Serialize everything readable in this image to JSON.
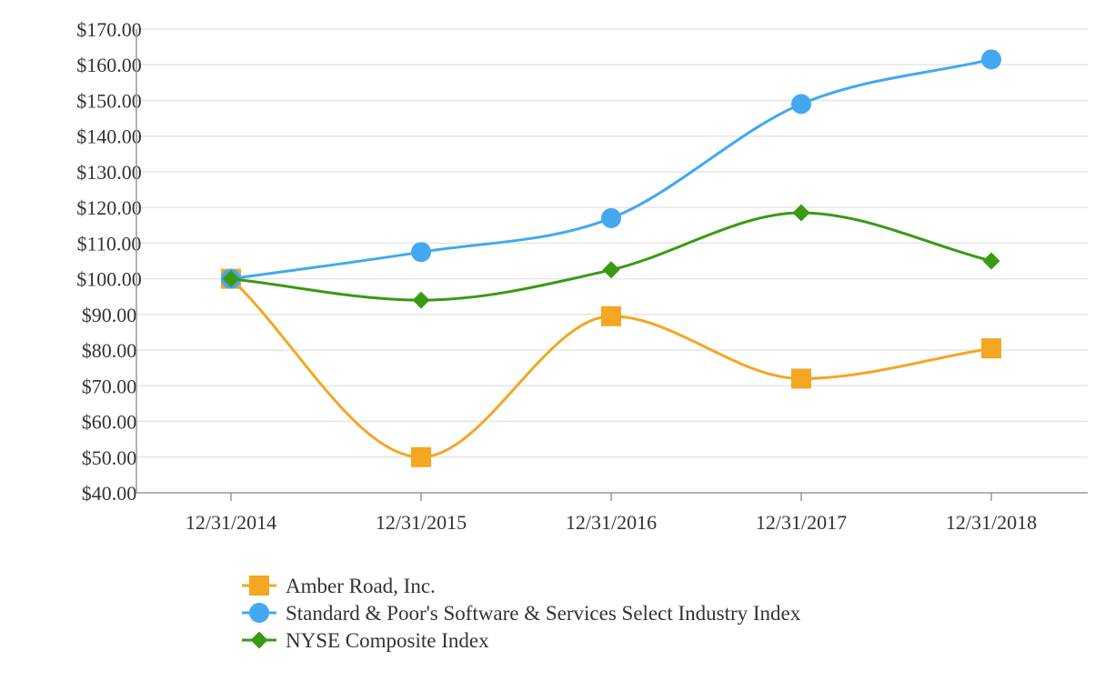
{
  "chart_data": {
    "type": "line",
    "title": "",
    "xlabel": "",
    "ylabel": "",
    "categories": [
      "12/31/2014",
      "12/31/2015",
      "12/31/2016",
      "12/31/2017",
      "12/31/2018"
    ],
    "ylim": [
      40,
      170
    ],
    "ytick_step": 10,
    "ytick_labels": [
      "$40.00",
      "$50.00",
      "$60.00",
      "$70.00",
      "$80.00",
      "$90.00",
      "$100.00",
      "$110.00",
      "$120.00",
      "$130.00",
      "$140.00",
      "$150.00",
      "$160.00",
      "$170.00"
    ],
    "grid": true,
    "legend_position": "bottom-left",
    "series": [
      {
        "name": "Amber Road, Inc.",
        "marker": "square",
        "color": "#F5A623",
        "values": [
          100,
          50,
          89.5,
          72,
          80.5
        ]
      },
      {
        "name": "Standard & Poor's Software & Services Select Industry Index",
        "marker": "circle",
        "color": "#43A8F0",
        "values": [
          100,
          107.5,
          117,
          149,
          161.5
        ]
      },
      {
        "name": "NYSE Composite Index",
        "marker": "diamond",
        "color": "#3A9A12",
        "values": [
          100,
          94,
          102.5,
          118.5,
          105
        ]
      }
    ]
  }
}
